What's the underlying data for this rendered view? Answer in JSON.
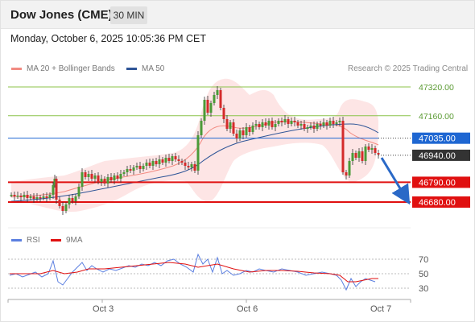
{
  "header": {
    "title": "Dow Jones (CME)",
    "interval": "30 MIN"
  },
  "timestamp": "Monday, October 6, 2025 10:05:36 PM CET",
  "legend": {
    "ma20": "MA 20 + Bollinger Bands",
    "ma50": "MA 50",
    "ma20_color": "#f28b82",
    "ma50_color": "#2f5597"
  },
  "copyright": "Research © 2025 Trading Central",
  "levels": [
    {
      "label": "47320.00",
      "kind": "resistance-line",
      "color": "#8bc34a"
    },
    {
      "label": "47160.00",
      "kind": "resistance-line",
      "color": "#8bc34a"
    },
    {
      "label": "47035.00",
      "kind": "pivot",
      "color": "#1f67d2"
    },
    {
      "label": "46940.00",
      "kind": "last-price",
      "color": "#333333"
    },
    {
      "label": "46790.00",
      "kind": "support",
      "color": "#e01010"
    },
    {
      "label": "46680.00",
      "kind": "support",
      "color": "#e01010"
    }
  ],
  "x_axis": {
    "ticks": [
      "Oct 3",
      "Oct 6",
      "Oct 7"
    ]
  },
  "rsi_panel": {
    "legend_rsi": "RSI",
    "legend_ma": "9MA",
    "rsi_color": "#5b7fe0",
    "ma_color": "#e01010",
    "levels": [
      "70",
      "50",
      "30"
    ]
  }
}
